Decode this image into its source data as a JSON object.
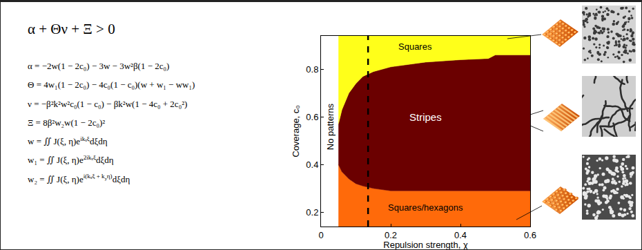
{
  "equations": {
    "condition": [
      "α + Θν + Ξ > 0"
    ],
    "lines": [
      [
        "α = −2w(1 − 2c₀) − 3w − 3w²β(1 − 2c₀)"
      ],
      [
        "Θ = 4w₁(1 − 2c₀) − 4c₀(1 − c₀)(w + w₁ − ww₁)"
      ],
      [
        "ν = −β²k²w²c₀(1 − c₀) − βk²w(1 − 4c₀ + 2c₀²)"
      ],
      [
        "Ξ = 8β²w₂w(1 − 2c₀)²"
      ],
      [
        "w = ∬ J(ξ, η)e",
        {
          "sup": [
            "ikₓξ"
          ]
        },
        "dξdη"
      ],
      [
        "w₁ = ∬ J(ξ, η)e",
        {
          "sup": [
            "2ikₓξ"
          ]
        },
        "dξdη"
      ],
      [
        "w₂ = ∬ J(ξ, η)e",
        {
          "sup": [
            "i(kₓξ + k",
            {
              "sub": [
                "y"
              ]
            },
            "η)"
          ]
        },
        "dξdη"
      ]
    ]
  },
  "chart_data": {
    "type": "area",
    "x_label": "Repulsion strength, χ",
    "y_label": "Coverage, c₀",
    "xlim": [
      0,
      0.6
    ],
    "ylim": [
      0.14,
      0.94
    ],
    "xticks": [
      0,
      0.2,
      0.4,
      0.6
    ],
    "yticks": [
      0.2,
      0.4,
      0.6,
      0.8
    ],
    "grid": false,
    "regions": [
      {
        "name": "Squares/hexagons",
        "color": "#ff6a0a"
      },
      {
        "name": "Stripes",
        "color": "#6b0000"
      },
      {
        "name": "Squares",
        "color": "#ffff1a"
      }
    ],
    "boundaries": [
      {
        "x": [
          0.05,
          0.06,
          0.08,
          0.1,
          0.12,
          0.15,
          0.2,
          0.3,
          0.4,
          0.5,
          0.6
        ],
        "values": [
          0.4,
          0.37,
          0.34,
          0.32,
          0.31,
          0.3,
          0.29,
          0.29,
          0.29,
          0.29,
          0.29
        ]
      },
      {
        "x": [
          0.05,
          0.06,
          0.08,
          0.1,
          0.12,
          0.15,
          0.2,
          0.25,
          0.3,
          0.4,
          0.48,
          0.5,
          0.6
        ],
        "values": [
          0.57,
          0.63,
          0.7,
          0.74,
          0.77,
          0.79,
          0.81,
          0.82,
          0.83,
          0.84,
          0.845,
          0.86,
          0.86
        ]
      }
    ],
    "annotations": [
      "No patterns"
    ],
    "dashed_line": {
      "x": 0.135,
      "color": "#000000"
    }
  }
}
